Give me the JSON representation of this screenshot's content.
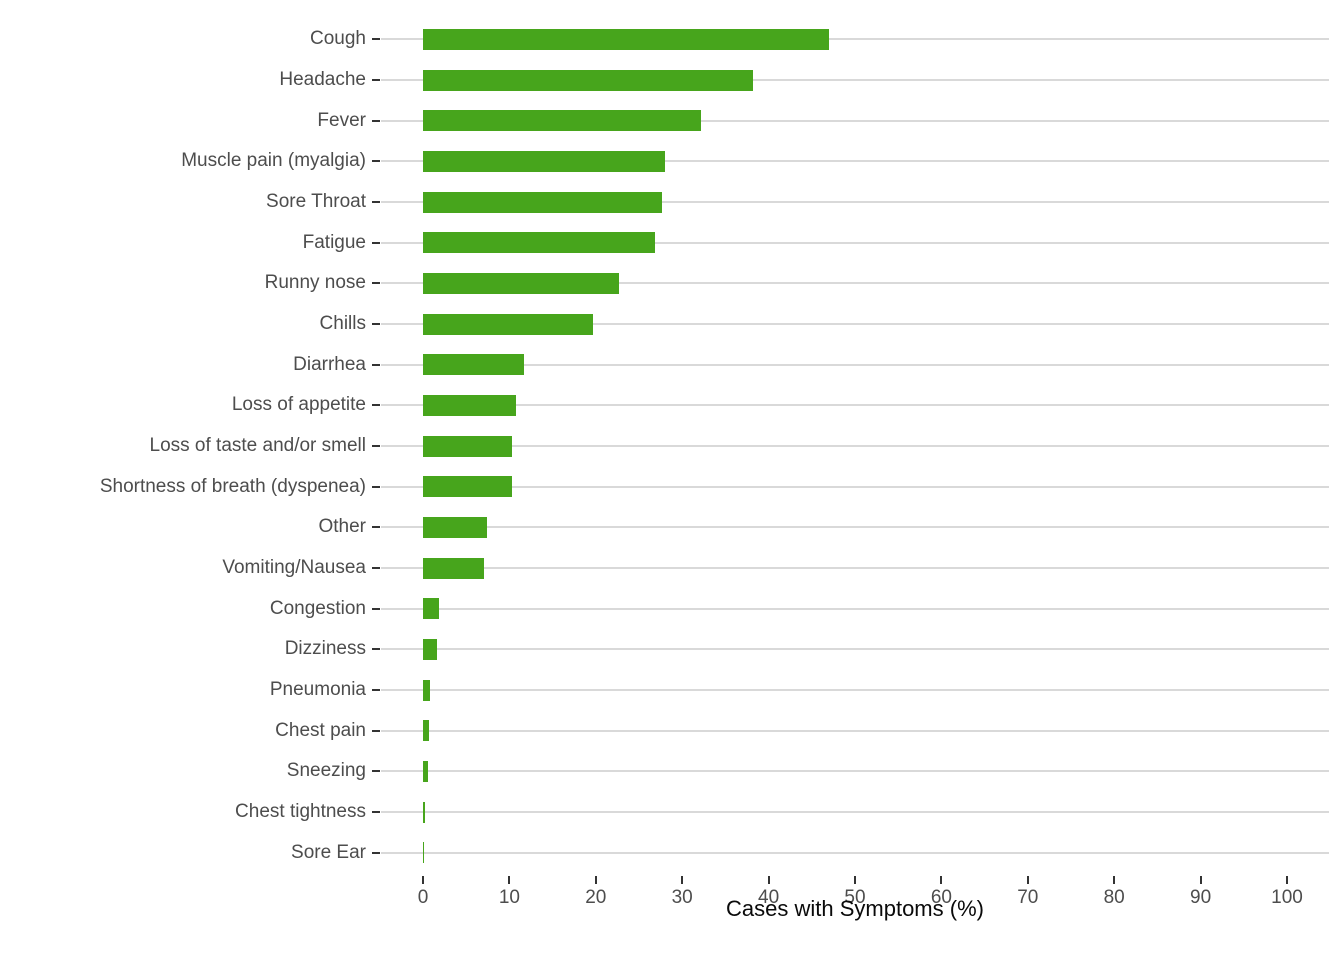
{
  "chart_data": {
    "type": "bar",
    "orientation": "horizontal",
    "title": "",
    "xlabel": "Cases with Symptoms (%)",
    "ylabel": "",
    "xlim": [
      0,
      100
    ],
    "x_ticks": [
      0,
      10,
      20,
      30,
      40,
      50,
      60,
      70,
      80,
      90,
      100
    ],
    "grid": "horizontal row lines only",
    "legend": "none",
    "categories": [
      "Cough",
      "Headache",
      "Fever",
      "Muscle pain (myalgia)",
      "Sore Throat",
      "Fatigue",
      "Runny nose",
      "Chills",
      "Diarrhea",
      "Loss of appetite",
      "Loss of taste and/or smell",
      "Shortness of breath (dyspenea)",
      "Other",
      "Vomiting/Nausea",
      "Congestion",
      "Dizziness",
      "Pneumonia",
      "Chest pain",
      "Sneezing",
      "Chest tightness",
      "Sore Ear"
    ],
    "values": [
      47.0,
      38.2,
      32.2,
      28.0,
      27.7,
      26.8,
      22.7,
      19.7,
      11.7,
      10.8,
      10.3,
      10.3,
      7.4,
      7.1,
      1.9,
      1.6,
      0.8,
      0.7,
      0.6,
      0.25,
      0.1
    ]
  },
  "colors": {
    "bar": "#47a51c",
    "gridline": "#d9d9d9",
    "tick_mark": "#333333",
    "tick_label": "#4d4d4d",
    "axis_title": "#0a0a0a",
    "background": "#ffffff"
  }
}
